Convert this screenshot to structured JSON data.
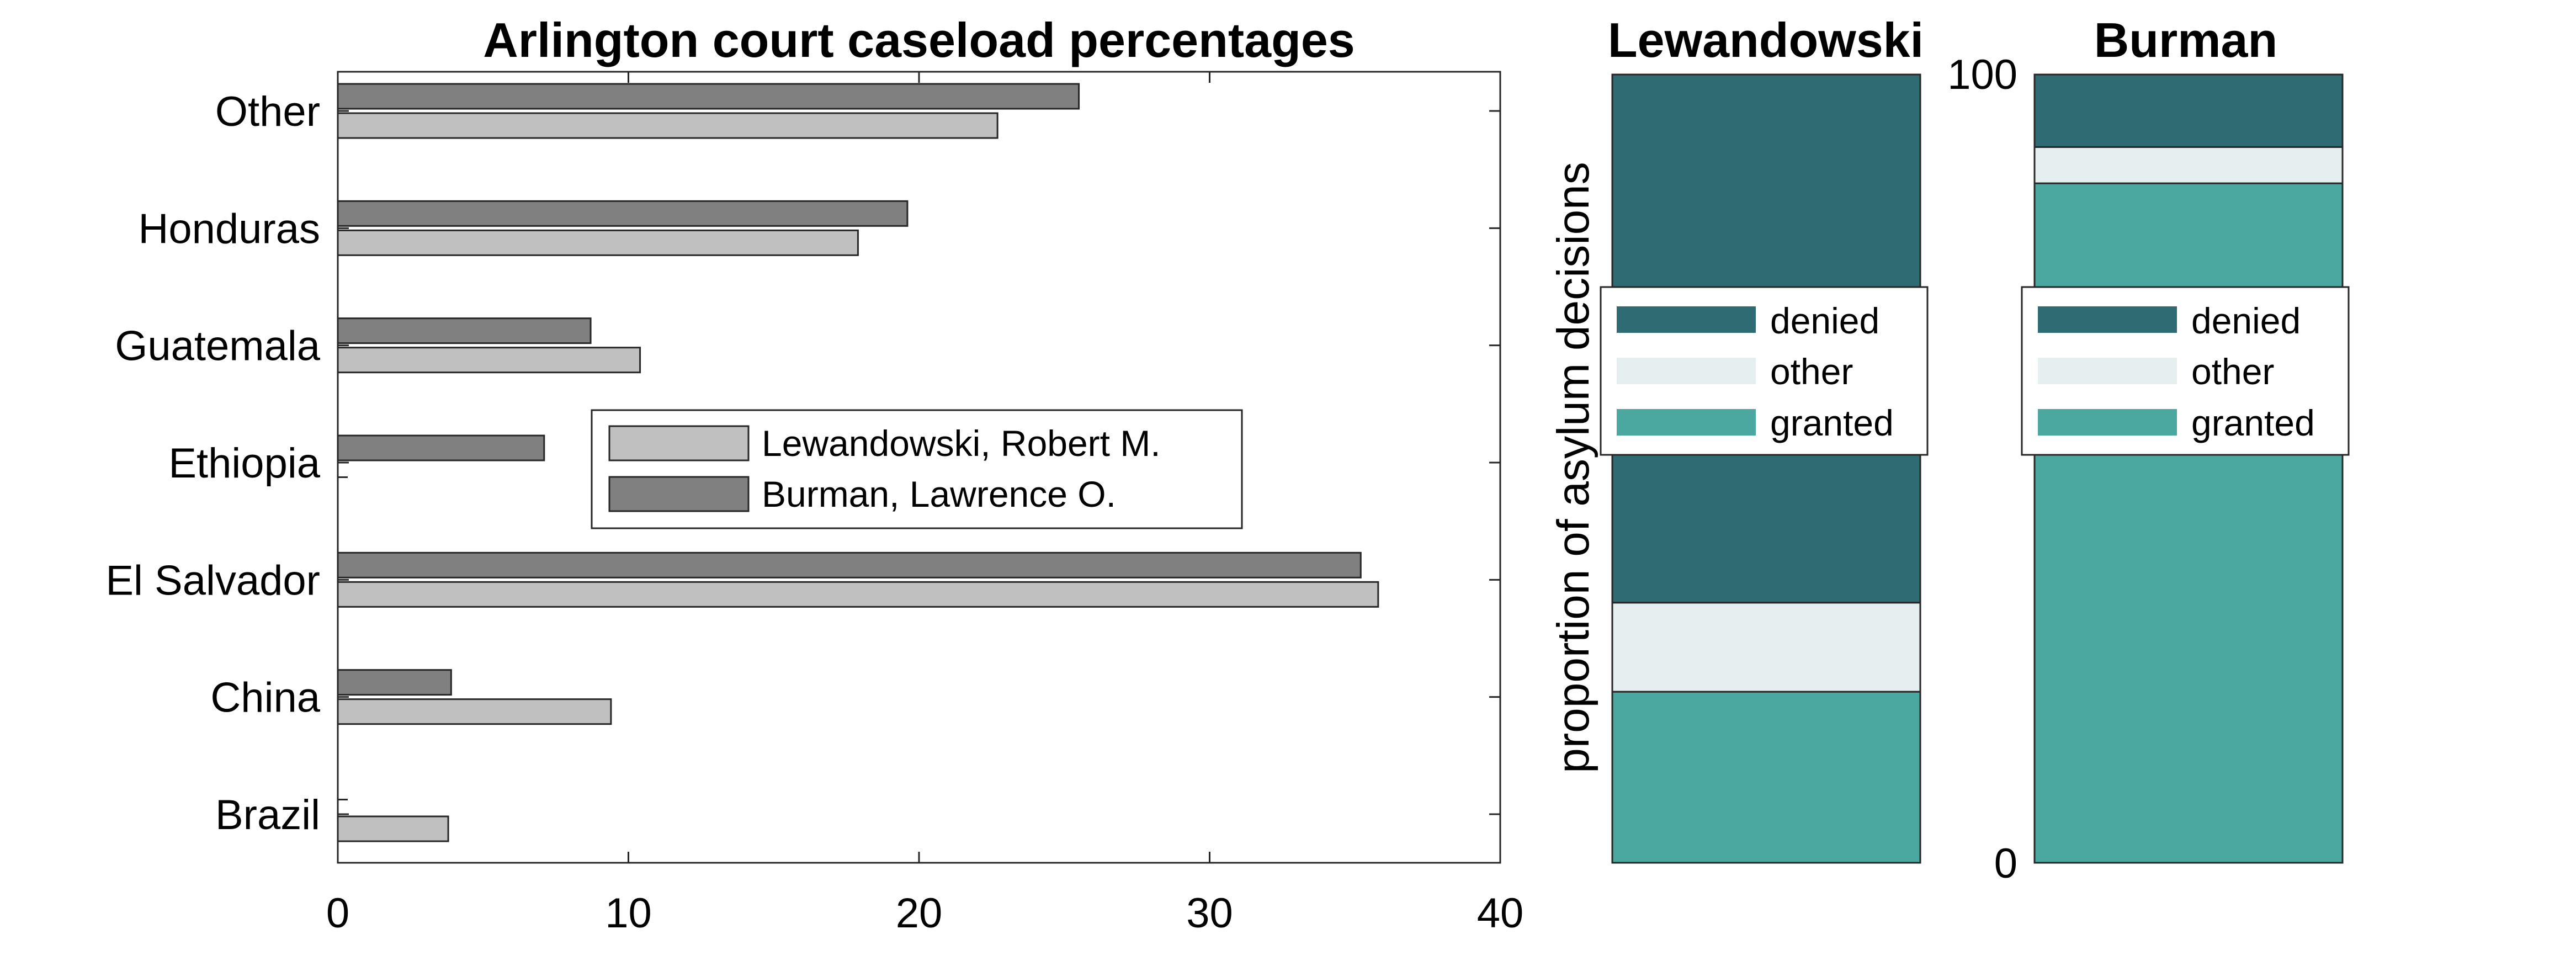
{
  "chart_data": [
    {
      "type": "bar",
      "orientation": "horizontal",
      "title": "Arlington court caseload percentages",
      "xlabel": "",
      "ylabel": "",
      "categories": [
        "Brazil",
        "China",
        "El Salvador",
        "Ethiopia",
        "Guatemala",
        "Honduras",
        "Other"
      ],
      "series": [
        {
          "name": "Lewandowski, Robert M.",
          "color": "#c0c0c0",
          "values": [
            3.8,
            9.4,
            35.8,
            0,
            10.4,
            17.9,
            22.7
          ]
        },
        {
          "name": "Burman, Lawrence O.",
          "color": "#808080",
          "values": [
            0,
            3.9,
            35.2,
            7.1,
            8.7,
            19.6,
            25.5
          ]
        }
      ],
      "xlim": [
        0,
        40
      ],
      "xticks": [
        "0",
        "10",
        "20",
        "30",
        "40"
      ],
      "legend": "center",
      "grid": false
    },
    {
      "type": "bar",
      "stacked": true,
      "title": "Lewandowski",
      "ylabel": "proportion of asylum decisions",
      "ylim": [
        0,
        100
      ],
      "series": [
        {
          "name": "granted",
          "color": "#4aa8a0",
          "value": 21.7
        },
        {
          "name": "other",
          "color": "#e6eff0",
          "value": 11.3
        },
        {
          "name": "denied",
          "color": "#2e6b72",
          "value": 67.0
        }
      ],
      "legend": "inside-upper",
      "grid": false
    },
    {
      "type": "bar",
      "stacked": true,
      "title": "Burman",
      "ylim": [
        0,
        100
      ],
      "yticks": [
        "0",
        "100"
      ],
      "series": [
        {
          "name": "granted",
          "color": "#4aa8a0",
          "value": 86.2
        },
        {
          "name": "other",
          "color": "#e6eff0",
          "value": 4.6
        },
        {
          "name": "denied",
          "color": "#2e6b72",
          "value": 9.2
        }
      ],
      "legend": "inside-upper",
      "grid": false
    }
  ]
}
